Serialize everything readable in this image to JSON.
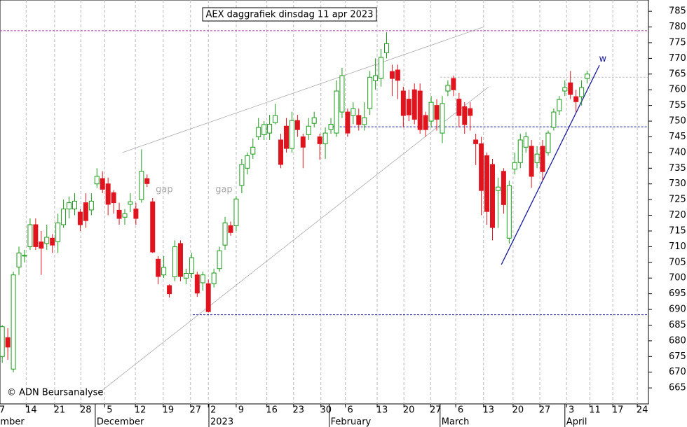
{
  "chart_data": {
    "type": "candlestick",
    "title": "AEX daggrafiek dinsdag 11 apr 2023",
    "credit": "© ADN Beursanalyse",
    "up_color": "#1a9a1a",
    "down_color": "#e0141e",
    "ylim": [
      659.9,
      788.6
    ],
    "xlim": [
      -0.4,
      116
    ],
    "yticks": [
      665,
      670,
      675,
      680,
      685,
      690,
      695,
      700,
      705,
      710,
      715,
      720,
      725,
      730,
      735,
      740,
      745,
      750,
      755,
      760,
      765,
      770,
      775,
      780,
      785
    ],
    "xticks": [
      {
        "value": -0.9,
        "label": "7"
      },
      {
        "value": 4.3,
        "label": "14"
      },
      {
        "value": 9.4,
        "label": "21"
      },
      {
        "value": 14.1,
        "label": "28"
      },
      {
        "value": 18.4,
        "label": "5"
      },
      {
        "value": 23.9,
        "label": "12"
      },
      {
        "value": 28.9,
        "label": "19"
      },
      {
        "value": 33.8,
        "label": "27"
      },
      {
        "value": 37.0,
        "label": "2"
      },
      {
        "value": 42.0,
        "label": "9"
      },
      {
        "value": 47.5,
        "label": "16"
      },
      {
        "value": 52.3,
        "label": "23"
      },
      {
        "value": 57.2,
        "label": "30"
      },
      {
        "value": 61.6,
        "label": "6"
      },
      {
        "value": 67.3,
        "label": "13"
      },
      {
        "value": 72.1,
        "label": "20"
      },
      {
        "value": 76.9,
        "label": "27"
      },
      {
        "value": 81.4,
        "label": "6"
      },
      {
        "value": 86.4,
        "label": "13"
      },
      {
        "value": 91.7,
        "label": "20"
      },
      {
        "value": 96.5,
        "label": "27"
      },
      {
        "value": 101.3,
        "label": "3"
      },
      {
        "value": 105.5,
        "label": "11"
      },
      {
        "value": 109.6,
        "label": "17"
      },
      {
        "value": 114.0,
        "label": "24"
      }
    ],
    "months": [
      {
        "value": -0.6,
        "label": "mber"
      },
      {
        "value": 16.7,
        "label": "December"
      },
      {
        "value": 37.1,
        "label": "2023"
      },
      {
        "value": 58.7,
        "label": "February"
      },
      {
        "value": 78.6,
        "label": "March"
      },
      {
        "value": 101.0,
        "label": "April"
      }
    ],
    "ohlc": [
      [
        675,
        685,
        673,
        684.5
      ],
      [
        681,
        684,
        674,
        678
      ],
      [
        671,
        702,
        670,
        701
      ],
      [
        703.5,
        710,
        701,
        708
      ],
      [
        707,
        709,
        705,
        707.3
      ],
      [
        710,
        719,
        709,
        717
      ],
      [
        717,
        719,
        709,
        710
      ],
      [
        711.5,
        715,
        701,
        709.5
      ],
      [
        711,
        717,
        709,
        713
      ],
      [
        712.7,
        714,
        708,
        710.5
      ],
      [
        711.6,
        720.5,
        708,
        717.6
      ],
      [
        717,
        725,
        716,
        722
      ],
      [
        722,
        726,
        719,
        724
      ],
      [
        722,
        727,
        720,
        724.5
      ],
      [
        721,
        722,
        715,
        717
      ],
      [
        724,
        727,
        716,
        718.3
      ],
      [
        721.7,
        727,
        720,
        724.5
      ],
      [
        730,
        735,
        728.8,
        732.4
      ],
      [
        731.7,
        734,
        727,
        728.3
      ],
      [
        730,
        732,
        720,
        723.5
      ],
      [
        727.2,
        728,
        720.5,
        724
      ],
      [
        721.6,
        724,
        717,
        719
      ],
      [
        719.4,
        722,
        717,
        720.5
      ],
      [
        723.5,
        727,
        721,
        724.3
      ],
      [
        722,
        724,
        717,
        719
      ],
      [
        725,
        741,
        724,
        734
      ],
      [
        731.7,
        733,
        729,
        730.1
      ],
      [
        724.3,
        725.5,
        708,
        708.3
      ],
      [
        706,
        707,
        698,
        700.5
      ],
      [
        701,
        707,
        700,
        703.4
      ],
      [
        697.6,
        698,
        693.8,
        695
      ],
      [
        700.4,
        712,
        699,
        710
      ],
      [
        711,
        712,
        699,
        700.5
      ],
      [
        700,
        703,
        698,
        701.5
      ],
      [
        701.5,
        708,
        700,
        706.5
      ],
      [
        701,
        702,
        694,
        695.2
      ],
      [
        698.5,
        702,
        696,
        701
      ],
      [
        698.2,
        699.5,
        689,
        689.3
      ],
      [
        698.2,
        703,
        697,
        701.6
      ],
      [
        703,
        710,
        702,
        708.7
      ],
      [
        710.5,
        719.5,
        709,
        717.6
      ],
      [
        716.7,
        718,
        713.5,
        714.5
      ],
      [
        716.7,
        726,
        715,
        725.2
      ],
      [
        729.5,
        738,
        727,
        736.2
      ],
      [
        735,
        740,
        733,
        739
      ],
      [
        739.5,
        744.5,
        738,
        741.7
      ],
      [
        745,
        751,
        744,
        748
      ],
      [
        745.7,
        750,
        744,
        748.9
      ],
      [
        746.2,
        752,
        744,
        749
      ],
      [
        749.5,
        755.5,
        749,
        751.8
      ],
      [
        744,
        746,
        735,
        736.2
      ],
      [
        748.4,
        751,
        740,
        741.3
      ],
      [
        741.3,
        753,
        740,
        750.2
      ],
      [
        750.2,
        752,
        745,
        747.3
      ],
      [
        745,
        746,
        735,
        741.7
      ],
      [
        745.7,
        751,
        744,
        748.4
      ],
      [
        749.3,
        753,
        748,
        751.1
      ],
      [
        745,
        746,
        737.7,
        742.8
      ],
      [
        742.8,
        748,
        738,
        746.2
      ],
      [
        747.3,
        751,
        746,
        749
      ],
      [
        746.2,
        763,
        745,
        759.6
      ],
      [
        752.9,
        767,
        751,
        764.5
      ],
      [
        752.9,
        754,
        745,
        746.2
      ],
      [
        751.8,
        756,
        749,
        754
      ],
      [
        751.8,
        754,
        747,
        748.9
      ],
      [
        748.9,
        756,
        747,
        751.1
      ],
      [
        754,
        766,
        752,
        764
      ],
      [
        762.9,
        770,
        760,
        764.5
      ],
      [
        763.6,
        773,
        761,
        770.3
      ],
      [
        771.8,
        778.3,
        770,
        774.7
      ],
      [
        765.8,
        768,
        758,
        763.6
      ],
      [
        766.3,
        768,
        757,
        763
      ],
      [
        759.6,
        761,
        748,
        751.8
      ],
      [
        757,
        760,
        750,
        752
      ],
      [
        760,
        762,
        749,
        750.6
      ],
      [
        759.6,
        762,
        746,
        747.3
      ],
      [
        751.8,
        753,
        745,
        747.3
      ],
      [
        750,
        758,
        748,
        756
      ],
      [
        755,
        757,
        747,
        750.6
      ],
      [
        746.2,
        758,
        743,
        755.6
      ],
      [
        759.6,
        763,
        758,
        761.4
      ],
      [
        763.6,
        764.5,
        758,
        760
      ],
      [
        757,
        759,
        748,
        751.8
      ],
      [
        754.6,
        756,
        746,
        748.9
      ],
      [
        754,
        756,
        747,
        751.8
      ],
      [
        744,
        746,
        736,
        742.8
      ],
      [
        742.8,
        745,
        720,
        727.9
      ],
      [
        739,
        740,
        717,
        721.2
      ],
      [
        736.2,
        738,
        712,
        716.1
      ],
      [
        727.9,
        732,
        716,
        729
      ],
      [
        734,
        735,
        720.5,
        723.4
      ],
      [
        712.7,
        731,
        711,
        729.5
      ],
      [
        734.7,
        740,
        733,
        736.8
      ],
      [
        736.8,
        746,
        735,
        744
      ],
      [
        741.7,
        746.5,
        740,
        745
      ],
      [
        742,
        744,
        728.8,
        732.4
      ],
      [
        736.8,
        742,
        735,
        739.5
      ],
      [
        742,
        744,
        731,
        733.9
      ],
      [
        740,
        747,
        739,
        746.2
      ],
      [
        748,
        754,
        747,
        752.9
      ],
      [
        753.3,
        758,
        752,
        756.9
      ],
      [
        759.6,
        763,
        758,
        760.7
      ],
      [
        762.2,
        766,
        757,
        758.5
      ],
      [
        757.8,
        760,
        753,
        756.2
      ],
      [
        757.8,
        763,
        755,
        760.7
      ],
      [
        763.6,
        766,
        762,
        765
      ]
    ],
    "levels": [
      {
        "y": 778.8,
        "x0": -0.4,
        "color": "#b040b0"
      },
      {
        "y": 748.2,
        "x0": 58.7,
        "color": "#2020a0"
      },
      {
        "y": 688.3,
        "x0": 34.2,
        "color": "#2020a0"
      },
      {
        "y": 764,
        "x0": 78.6,
        "color": "#bbbbbb"
      }
    ],
    "trendlines": [
      {
        "x": [
          21.6,
          86.4
        ],
        "y": [
          740,
          780
        ],
        "color": "#aaaaaa"
      },
      {
        "x": [
          17.2,
          87.3
        ],
        "y": [
          663.2,
          760.9
        ],
        "color": "#aaaaaa"
      },
      {
        "x": [
          89.6,
          107.2
        ],
        "y": [
          704.3,
          767.8
        ],
        "color": "#1a1aa0"
      }
    ],
    "annotations": [
      {
        "text": "gap",
        "x": 29.1,
        "y": 728.1,
        "color": "#aaaaaa"
      },
      {
        "text": "gap",
        "x": 39.8,
        "y": 728.1,
        "color": "#aaaaaa"
      },
      {
        "text": "w",
        "x": 107.8,
        "y": 769.8,
        "color": "#1a1aa0"
      }
    ]
  }
}
